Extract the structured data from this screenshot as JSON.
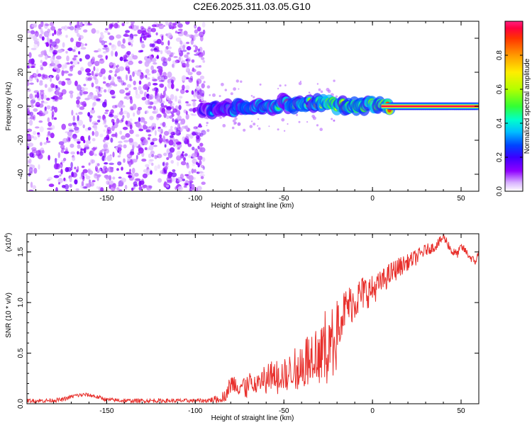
{
  "title": "C2E6.2025.311.03.05.G10",
  "colors": {
    "snr_line": "#e8302c",
    "axis": "#000000",
    "scatter_base": "#7b00ff",
    "colorbar": [
      "#ffffff",
      "#d9b3ff",
      "#8f00ff",
      "#3b00ff",
      "#0044ff",
      "#00bfff",
      "#00ffcc",
      "#33ff33",
      "#b3ff00",
      "#ffee00",
      "#ff9900",
      "#ff3300",
      "#ff0040",
      "#ff2080"
    ]
  },
  "chart_data": [
    {
      "type": "heatmap",
      "title": "C2E6.2025.311.03.05.G10",
      "xlabel": "Height of straight line (km)",
      "ylabel": "Frequency (Hz)",
      "xlim": [
        -195,
        60
      ],
      "ylim": [
        -50,
        50
      ],
      "x_ticks": [
        -150,
        -100,
        -50,
        0,
        50
      ],
      "x_tick_labels": [
        "-150",
        "-100",
        "-50",
        "0",
        "50"
      ],
      "y_ticks": [
        -40,
        -20,
        0,
        20,
        40
      ],
      "y_tick_labels": [
        "-40",
        "-20",
        "0",
        "20",
        "40"
      ],
      "colorbar": {
        "label": "Normalized spectral amplitude",
        "range": [
          0,
          1
        ],
        "ticks": [
          0.0,
          0.2,
          0.4,
          0.6,
          0.8
        ],
        "tick_labels": [
          "0.0",
          "0.2",
          "0.4",
          "0.6",
          "0.8"
        ]
      },
      "regions": {
        "noise_height_range": [
          -195,
          -95
        ],
        "noise_freq_range": [
          -50,
          50
        ],
        "noise_amplitude": 0.1,
        "signal_ridge": [
          {
            "x": -95,
            "freq": -1.5,
            "amp": 0.25
          },
          {
            "x": -88,
            "freq": -2.5,
            "amp": 0.35
          },
          {
            "x": -80,
            "freq": -1.5,
            "amp": 0.4
          },
          {
            "x": -70,
            "freq": -0.5,
            "amp": 0.5
          },
          {
            "x": -60,
            "freq": 0.5,
            "amp": 0.55
          },
          {
            "x": -50,
            "freq": 1.5,
            "amp": 0.55
          },
          {
            "x": -40,
            "freq": 1.5,
            "amp": 0.6
          },
          {
            "x": -30,
            "freq": 2.0,
            "amp": 0.6
          },
          {
            "x": -24,
            "freq": 1.5,
            "amp": 0.85
          },
          {
            "x": -15,
            "freq": 0.0,
            "amp": 0.7
          },
          {
            "x": -5,
            "freq": 0.5,
            "amp": 0.75
          },
          {
            "x": 0,
            "freq": 1.0,
            "amp": 0.8
          },
          {
            "x": 5,
            "freq": 0.0,
            "amp": 0.9
          },
          {
            "x": 10,
            "freq": 0.0,
            "amp": 0.92
          },
          {
            "x": 30,
            "freq": 0.0,
            "amp": 0.95
          },
          {
            "x": 60,
            "freq": 0.0,
            "amp": 0.95
          }
        ]
      }
    },
    {
      "type": "line",
      "xlabel": "Height of straight line (km)",
      "ylabel": "SNR (10 * v/v)",
      "y_multiplier": "(x10",
      "y_multiplier_exp": "4",
      "y_multiplier_close": ")",
      "xlim": [
        -195,
        60
      ],
      "ylim": [
        0,
        1.68
      ],
      "x_ticks": [
        -150,
        -100,
        -50,
        0,
        50
      ],
      "x_tick_labels": [
        "-150",
        "-100",
        "-50",
        "0",
        "50"
      ],
      "y_ticks": [
        0.0,
        0.5,
        1.0,
        1.5
      ],
      "y_tick_labels": [
        "0.0",
        "0.5",
        "1.0",
        "1.5"
      ],
      "series": [
        {
          "name": "SNR",
          "x": [
            -195,
            -185,
            -175,
            -168,
            -162,
            -158,
            -150,
            -140,
            -130,
            -120,
            -110,
            -100,
            -95,
            -90,
            -85,
            -82,
            -80,
            -75,
            -70,
            -65,
            -60,
            -55,
            -50,
            -45,
            -40,
            -35,
            -30,
            -27,
            -24,
            -22,
            -20,
            -15,
            -10,
            -5,
            0,
            5,
            10,
            15,
            20,
            25,
            30,
            35,
            38,
            40,
            42,
            45,
            48,
            50,
            52,
            55,
            58,
            60
          ],
          "y": [
            0.03,
            0.03,
            0.04,
            0.08,
            0.09,
            0.08,
            0.04,
            0.03,
            0.03,
            0.03,
            0.03,
            0.03,
            0.03,
            0.04,
            0.06,
            0.12,
            0.2,
            0.18,
            0.2,
            0.22,
            0.26,
            0.3,
            0.28,
            0.34,
            0.42,
            0.5,
            0.55,
            0.62,
            0.6,
            0.7,
            0.8,
            0.95,
            1.02,
            1.1,
            1.12,
            1.2,
            1.28,
            1.35,
            1.4,
            1.45,
            1.52,
            1.55,
            1.6,
            1.65,
            1.6,
            1.5,
            1.48,
            1.55,
            1.52,
            1.45,
            1.4,
            1.5
          ],
          "noise_amplitude": [
            0.02,
            0.02,
            0.02,
            0.02,
            0.02,
            0.02,
            0.02,
            0.02,
            0.02,
            0.02,
            0.02,
            0.02,
            0.02,
            0.03,
            0.05,
            0.08,
            0.1,
            0.1,
            0.1,
            0.12,
            0.14,
            0.15,
            0.16,
            0.18,
            0.22,
            0.25,
            0.28,
            0.3,
            0.3,
            0.3,
            0.25,
            0.2,
            0.2,
            0.18,
            0.15,
            0.12,
            0.12,
            0.1,
            0.08,
            0.08,
            0.06,
            0.05,
            0.05,
            0.04,
            0.05,
            0.05,
            0.04,
            0.04,
            0.04,
            0.04,
            0.04,
            0.03
          ]
        }
      ]
    }
  ]
}
